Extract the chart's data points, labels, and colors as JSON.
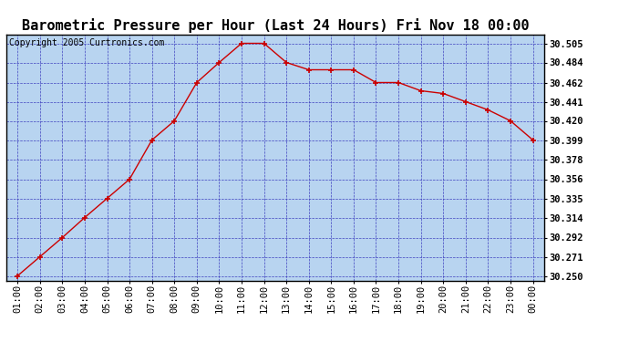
{
  "title": "Barometric Pressure per Hour (Last 24 Hours) Fri Nov 18 00:00",
  "copyright": "Copyright 2005 Curtronics.com",
  "x_labels": [
    "01:00",
    "02:00",
    "03:00",
    "04:00",
    "05:00",
    "06:00",
    "07:00",
    "08:00",
    "09:00",
    "10:00",
    "11:00",
    "12:00",
    "13:00",
    "14:00",
    "15:00",
    "16:00",
    "17:00",
    "18:00",
    "19:00",
    "20:00",
    "21:00",
    "22:00",
    "23:00",
    "00:00"
  ],
  "y_values": [
    30.25,
    30.271,
    30.292,
    30.314,
    30.335,
    30.356,
    30.399,
    30.42,
    30.462,
    30.484,
    30.505,
    30.505,
    30.484,
    30.476,
    30.476,
    30.476,
    30.462,
    30.462,
    30.453,
    30.45,
    30.441,
    30.432,
    30.42,
    30.399
  ],
  "y_ticks": [
    30.25,
    30.271,
    30.292,
    30.314,
    30.335,
    30.356,
    30.378,
    30.399,
    30.42,
    30.441,
    30.462,
    30.484,
    30.505
  ],
  "y_min": 30.245,
  "y_max": 30.515,
  "line_color": "#cc0000",
  "marker_color": "#cc0000",
  "bg_color": "#b8d4f0",
  "outer_bg": "#ffffff",
  "grid_color": "#3333bb",
  "title_fontsize": 11,
  "copyright_fontsize": 7,
  "tick_fontsize": 7.5
}
